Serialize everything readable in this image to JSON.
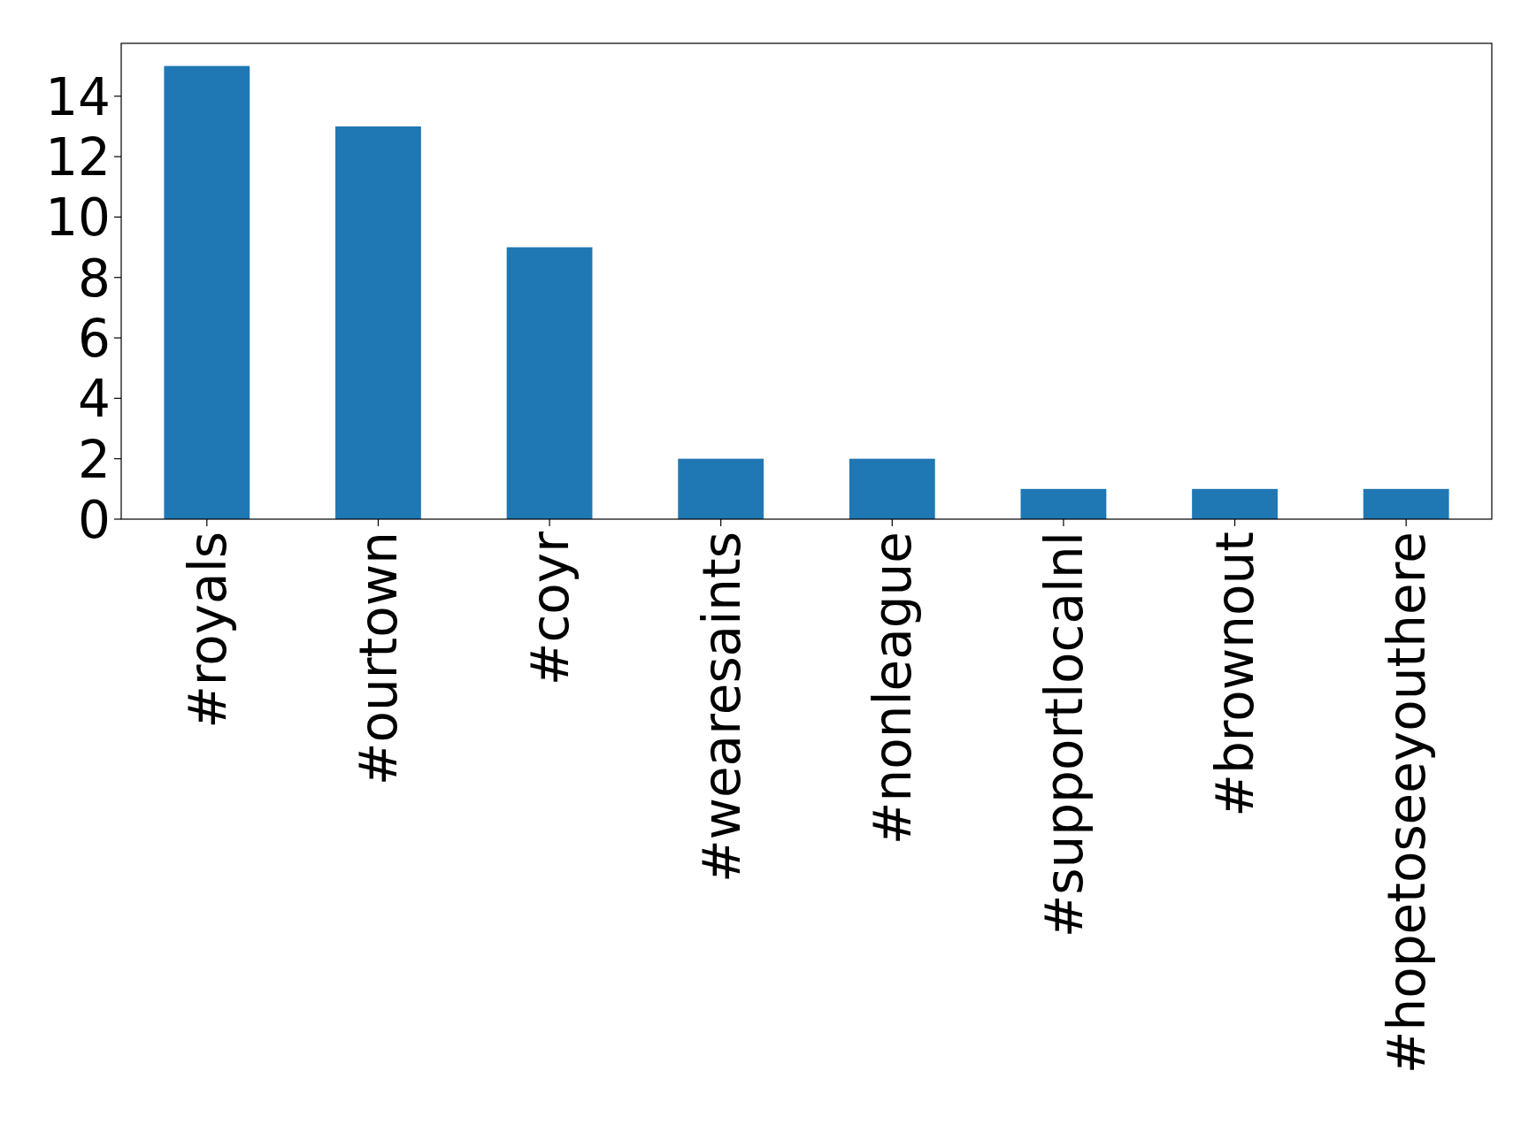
{
  "chart_data": {
    "type": "bar",
    "categories": [
      "#royals",
      "#ourtown",
      "#coyr",
      "#wearesaints",
      "#nonleague",
      "#supportlocalnl",
      "#brownout",
      "#hopetoseeyouthere"
    ],
    "values": [
      15,
      13,
      9,
      2,
      2,
      1,
      1,
      1
    ],
    "color": "#1f77b4",
    "ylim": [
      0,
      15.75
    ],
    "yticks": [
      0,
      2,
      4,
      6,
      8,
      10,
      12,
      14
    ],
    "grid": false
  }
}
